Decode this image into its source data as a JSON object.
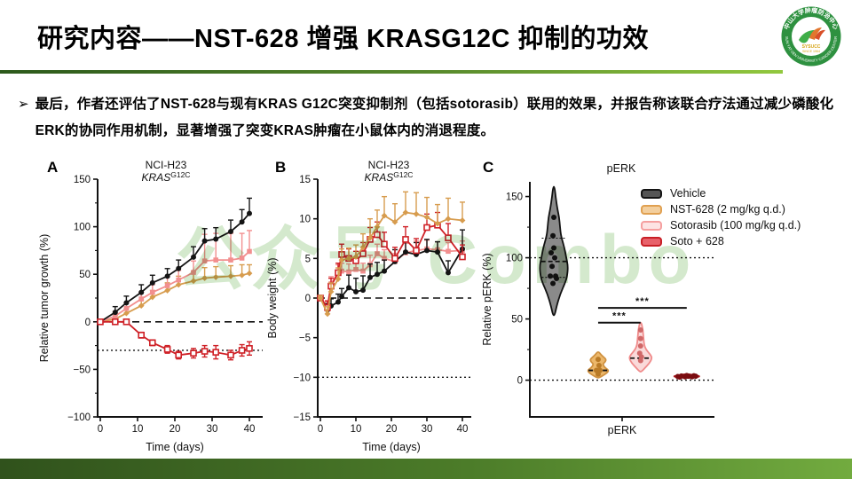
{
  "slide": {
    "title": "研究内容——NST-628 增强 KRASG12C 抑制的功效",
    "bullet_marker": "➢",
    "bullet": "最后，作者还评估了NST-628与现有KRAS G12C突变抑制剂（包括sotorasib）联用的效果，并报告称该联合疗法通过减少磷酸化ERK的协同作用机制，显著增强了突变KRAS肿瘤在小鼠体内的消退程度。",
    "watermark": "公众号 Combo",
    "logo": {
      "org_cn": "中山大学肿瘤防治中心",
      "org_abbr": "SYSUCC",
      "org_since": "SINCE 1964",
      "org_en": "SUN YAT-SEN UNIVERSITY CANCER CENTER"
    }
  },
  "colors": {
    "vehicle": "#141414",
    "nst628": "#d79c4e",
    "sotorasib": "#f28f8f",
    "combo": "#cf2127",
    "accent_green_dark": "#2c591b",
    "accent_green_light": "#92c83e"
  },
  "chart_data": [
    {
      "id": "A",
      "type": "line",
      "panel_label": "A",
      "title": "NCI-H23",
      "subtitle_gene": "KRAS",
      "subtitle_sup": "G12C",
      "xlabel": "Time (days)",
      "ylabel": "Relative tumor growth (%)",
      "xlim": [
        0,
        43
      ],
      "ylim": [
        -100,
        150
      ],
      "xticks": [
        0,
        10,
        20,
        30,
        40
      ],
      "yticks": [
        150,
        100,
        50,
        0,
        -50,
        -100
      ],
      "yminorticks": [
        125,
        75,
        25,
        -25,
        -75
      ],
      "ref_lines": [
        {
          "y": 0,
          "style": "dashed"
        },
        {
          "y": -30,
          "style": "dotted"
        }
      ],
      "series": [
        {
          "name": "NST-628 (2 mg/kg q.d.)",
          "color": "#d79c4e",
          "marker": "diamond",
          "err_dir": "up",
          "x": [
            0,
            4,
            7,
            11,
            14,
            18,
            21,
            25,
            28,
            31,
            35,
            38,
            40
          ],
          "y": [
            0,
            3,
            9,
            17,
            26,
            33,
            39,
            43,
            46,
            47,
            48,
            49,
            51
          ],
          "err": [
            2,
            4,
            5,
            6,
            7,
            8,
            9,
            10,
            11,
            11,
            11,
            11,
            9
          ]
        },
        {
          "name": "Sotorasib (100 mg/kg q.d.)",
          "color": "#f28f8f",
          "marker": "square",
          "err_dir": "up",
          "x": [
            0,
            4,
            7,
            11,
            14,
            18,
            21,
            25,
            28,
            31,
            35,
            38,
            40
          ],
          "y": [
            0,
            6,
            14,
            24,
            31,
            38,
            44,
            52,
            64,
            65,
            65,
            67,
            74
          ],
          "err": [
            2,
            5,
            6,
            7,
            8,
            9,
            10,
            12,
            28,
            28,
            28,
            26,
            22
          ]
        },
        {
          "name": "Vehicle",
          "color": "#141414",
          "marker": "circle",
          "err_dir": "up",
          "x": [
            0,
            4,
            7,
            11,
            14,
            18,
            21,
            25,
            28,
            31,
            35,
            38,
            40
          ],
          "y": [
            0,
            10,
            20,
            31,
            41,
            48,
            56,
            68,
            85,
            87,
            95,
            105,
            114
          ],
          "err": [
            2,
            6,
            7,
            8,
            8,
            8,
            9,
            11,
            13,
            12,
            12,
            13,
            16
          ]
        },
        {
          "name": "Soto + 628",
          "color": "#cf2127",
          "marker": "open-square",
          "err_dir": "both",
          "x": [
            0,
            4,
            7,
            11,
            14,
            18,
            21,
            25,
            28,
            31,
            35,
            38,
            40
          ],
          "y": [
            0,
            0,
            0,
            -14,
            -22,
            -29,
            -35,
            -33,
            -31,
            -32,
            -35,
            -30,
            -28
          ],
          "err": [
            1,
            2,
            2,
            3,
            3,
            4,
            4,
            5,
            6,
            7,
            5,
            6,
            7
          ]
        }
      ]
    },
    {
      "id": "B",
      "type": "line",
      "panel_label": "B",
      "title": "NCI-H23",
      "subtitle_gene": "KRAS",
      "subtitle_sup": "G12C",
      "xlabel": "Time (days)",
      "ylabel": "Body weight (%)",
      "xlim": [
        0,
        43
      ],
      "ylim": [
        -15,
        15
      ],
      "xticks": [
        0,
        10,
        20,
        30,
        40
      ],
      "yticks": [
        15,
        10,
        5,
        0,
        -5,
        -10,
        -15
      ],
      "yminorticks": [],
      "ref_lines": [
        {
          "y": 0,
          "style": "dashed"
        },
        {
          "y": -10,
          "style": "dotted"
        }
      ],
      "series": [
        {
          "name": "Sotorasib (100 mg/kg q.d.)",
          "color": "#f28f8f",
          "marker": "square",
          "err_dir": "up",
          "x": [
            0,
            2,
            3,
            5,
            6,
            8,
            10,
            12,
            14,
            16,
            18,
            21,
            24,
            27,
            30,
            33,
            36,
            40
          ],
          "y": [
            0,
            -1,
            1.8,
            3.2,
            3.4,
            3.3,
            3.6,
            3.4,
            4.2,
            5.6,
            5,
            4.6,
            5.7,
            6,
            6.2,
            6.1,
            5.9,
            6
          ],
          "err": [
            0.3,
            0.7,
            0.9,
            1,
            1,
            1,
            1.1,
            1,
            1.2,
            1.2,
            1.1,
            1,
            1.2,
            1.2,
            1.1,
            1,
            1.1,
            1.2
          ]
        },
        {
          "name": "Vehicle",
          "color": "#141414",
          "marker": "circle",
          "err_dir": "up",
          "x": [
            0,
            2,
            3,
            5,
            6,
            8,
            10,
            12,
            14,
            16,
            18,
            21,
            24,
            27,
            30,
            33,
            36,
            40
          ],
          "y": [
            0,
            -1.5,
            -1,
            -0.5,
            0.2,
            1.3,
            0.8,
            1,
            2.6,
            3,
            3.4,
            4.6,
            5.8,
            5.5,
            6,
            5.8,
            3.2,
            6.2
          ],
          "err": [
            0.3,
            0.8,
            0.9,
            1,
            1,
            1.6,
            1.7,
            1.8,
            1.7,
            1.5,
            1.4,
            1.5,
            1.6,
            1.5,
            1.4,
            1.3,
            1.5,
            2.4
          ]
        },
        {
          "name": "Soto + 628",
          "color": "#cf2127",
          "marker": "open-square",
          "err_dir": "up",
          "x": [
            0,
            2,
            3,
            5,
            6,
            8,
            10,
            12,
            14,
            16,
            18,
            21,
            24,
            27,
            30,
            33,
            36,
            40
          ],
          "y": [
            0,
            -1.2,
            1.5,
            3.2,
            5.5,
            5,
            4.7,
            5.6,
            7.4,
            8,
            6.8,
            5,
            7.4,
            6,
            8.9,
            9.2,
            7.6,
            5.2
          ],
          "err": [
            0.3,
            0.8,
            1,
            1.2,
            1.3,
            1.2,
            1.2,
            1.4,
            1.5,
            1.6,
            1.5,
            1.4,
            1.6,
            1.5,
            1.7,
            1.6,
            1.8,
            1.5
          ]
        },
        {
          "name": "NST-628 (2 mg/kg q.d.)",
          "color": "#d79c4e",
          "marker": "diamond",
          "err_dir": "up",
          "x": [
            0,
            2,
            3,
            5,
            6,
            8,
            10,
            12,
            14,
            16,
            18,
            21,
            24,
            27,
            30,
            33,
            36,
            40
          ],
          "y": [
            0,
            -2,
            0.8,
            2.4,
            4.8,
            5,
            5.2,
            6.4,
            7.6,
            9,
            10.4,
            9.6,
            10.8,
            10.6,
            10.2,
            9.4,
            10,
            9.8
          ],
          "err": [
            0.3,
            0.9,
            1.1,
            1.4,
            1.4,
            1.3,
            1.5,
            1.7,
            2.4,
            2.1,
            2.4,
            2.3,
            2.6,
            2.7,
            2.5,
            2.4,
            2.6,
            2.3
          ]
        }
      ]
    },
    {
      "id": "C",
      "type": "violin",
      "panel_label": "C",
      "title": "pERK",
      "xlabel": "pERK",
      "ylabel": "Relative pERK (%)",
      "ylim": [
        -30,
        162
      ],
      "yticks": [
        150,
        100,
        50,
        0
      ],
      "yminorticks": [
        125,
        75,
        25
      ],
      "ref_lines": [
        {
          "y": 100,
          "style": "dotted"
        },
        {
          "y": 0,
          "style": "dotted"
        }
      ],
      "groups": [
        {
          "name": "Vehicle",
          "pos": 0.13,
          "color": "#111111",
          "fill": "#8a8a8a",
          "dot": "#111111",
          "profile": [
            [
              53,
              1
            ],
            [
              60,
              3
            ],
            [
              70,
              7
            ],
            [
              80,
              13
            ],
            [
              85,
              15
            ],
            [
              93,
              16
            ],
            [
              100,
              14
            ],
            [
              108,
              12
            ],
            [
              118,
              8
            ],
            [
              125,
              7
            ],
            [
              133,
              6
            ],
            [
              140,
              4
            ],
            [
              150,
              2
            ],
            [
              158,
              0.8
            ]
          ],
          "median": 97,
          "quartiles": [
            84,
            116
          ],
          "points": [
            [
              0,
              133
            ],
            [
              -1,
              118
            ],
            [
              0,
              108
            ],
            [
              -3,
              104
            ],
            [
              1,
              100
            ],
            [
              -2,
              93
            ],
            [
              -4,
              85
            ],
            [
              2,
              85
            ],
            [
              -1,
              79
            ],
            [
              3,
              83
            ]
          ]
        },
        {
          "name": "NST-628 (2 mg/kg q.d.)",
          "pos": 0.37,
          "color": "#cf9140",
          "fill": "#ecb76a",
          "dot": "#b97a26",
          "profile": [
            [
              2,
              1
            ],
            [
              4,
              6
            ],
            [
              6,
              10
            ],
            [
              8,
              12
            ],
            [
              10,
              8
            ],
            [
              13,
              5
            ],
            [
              15,
              8
            ],
            [
              17,
              9
            ],
            [
              19,
              6
            ],
            [
              21,
              3
            ],
            [
              23,
              1
            ]
          ],
          "median": 8,
          "quartiles": [],
          "points": [
            [
              0,
              17
            ],
            [
              -2,
              8
            ],
            [
              2,
              8
            ],
            [
              0,
              5
            ],
            [
              1,
              12
            ]
          ]
        },
        {
          "name": "Sotorasib (100 mg/kg q.d.)",
          "pos": 0.6,
          "color": "#f08b8b",
          "fill": "#fad9d9",
          "dot": "#d06868",
          "profile": [
            [
              7,
              1
            ],
            [
              10,
              5
            ],
            [
              14,
              10
            ],
            [
              18,
              13
            ],
            [
              21,
              11
            ],
            [
              25,
              6
            ],
            [
              29,
              4
            ],
            [
              33,
              3.5
            ],
            [
              37,
              3
            ],
            [
              41,
              2.5
            ],
            [
              45,
              1.5
            ],
            [
              47,
              0.5
            ]
          ],
          "median": 18,
          "quartiles": [],
          "points": [
            [
              0,
              41
            ],
            [
              0,
              34
            ],
            [
              0,
              28
            ],
            [
              -1,
              22
            ],
            [
              1,
              19
            ],
            [
              0,
              16
            ]
          ]
        },
        {
          "name": "Soto + 628",
          "pos": 0.85,
          "color": "#b01b20",
          "fill": "#cf2127",
          "dot": "#7a0c10",
          "profile": [
            [
              1.8,
              1
            ],
            [
              2.4,
              10
            ],
            [
              3,
              15
            ],
            [
              3.8,
              12
            ],
            [
              5,
              1
            ]
          ],
          "median": null,
          "quartiles": [],
          "points": [
            [
              -10,
              3
            ],
            [
              -6,
              3.4
            ],
            [
              -2,
              2.8
            ],
            [
              2,
              3.2
            ],
            [
              6,
              2.8
            ],
            [
              10,
              3.2
            ],
            [
              0,
              3.8
            ],
            [
              8,
              3.6
            ],
            [
              -8,
              2.5
            ]
          ]
        }
      ],
      "sig_bars": [
        {
          "from": 0.37,
          "to": 0.85,
          "y": 59,
          "label": "***"
        },
        {
          "from": 0.37,
          "to": 0.6,
          "y": 47,
          "label": "***"
        }
      ],
      "legend": [
        {
          "label": "Vehicle",
          "color": "#141414",
          "fill": "#555555"
        },
        {
          "label": "NST-628 (2 mg/kg q.d.)",
          "color": "#e0a050",
          "fill": "#f3cf9e"
        },
        {
          "label": "Sotorasib (100 mg/kg q.d.)",
          "color": "#f59f9f",
          "fill": "#fde3e3"
        },
        {
          "label": "Soto + 628",
          "color": "#c81f26",
          "fill": "#e8616a"
        }
      ]
    }
  ]
}
